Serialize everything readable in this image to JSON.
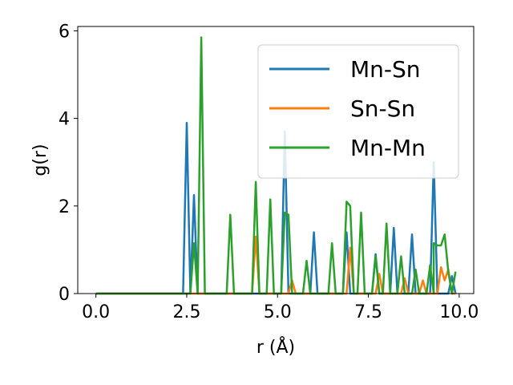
{
  "chart_data": {
    "type": "line",
    "title": "",
    "xlabel": "r (Å)",
    "ylabel": "g(r)",
    "xlim": [
      -0.5,
      10.4
    ],
    "ylim": [
      0,
      6.1
    ],
    "xticks": [
      0.0,
      2.5,
      5.0,
      7.5,
      10.0
    ],
    "xtick_labels": [
      "0.0",
      "2.5",
      "5.0",
      "7.5",
      "10.0"
    ],
    "yticks": [
      0,
      2,
      4,
      6
    ],
    "ytick_labels": [
      "0",
      "2",
      "4",
      "6"
    ],
    "grid": false,
    "legend_position": "top-right",
    "colors": {
      "Mn-Sn": "#1f77b4",
      "Sn-Sn": "#ff7f0e",
      "Mn-Mn": "#2ca02c"
    },
    "series": [
      {
        "name": "Mn-Sn",
        "points": [
          [
            0.0,
            0
          ],
          [
            2.4,
            0
          ],
          [
            2.5,
            3.9
          ],
          [
            2.6,
            0
          ],
          [
            2.7,
            2.25
          ],
          [
            2.8,
            0
          ],
          [
            5.1,
            0
          ],
          [
            5.2,
            3.7
          ],
          [
            5.3,
            0
          ],
          [
            5.9,
            0
          ],
          [
            6.0,
            1.4
          ],
          [
            6.1,
            0
          ],
          [
            6.8,
            0
          ],
          [
            6.9,
            1.4
          ],
          [
            7.0,
            0
          ],
          [
            7.6,
            0
          ],
          [
            7.7,
            0.9
          ],
          [
            7.8,
            0
          ],
          [
            8.1,
            0
          ],
          [
            8.2,
            1.5
          ],
          [
            8.3,
            0
          ],
          [
            8.6,
            0
          ],
          [
            8.7,
            1.35
          ],
          [
            8.8,
            0
          ],
          [
            9.2,
            0
          ],
          [
            9.3,
            3.0
          ],
          [
            9.4,
            0
          ],
          [
            9.7,
            0
          ],
          [
            9.8,
            0.4
          ],
          [
            9.9,
            0
          ]
        ]
      },
      {
        "name": "Sn-Sn",
        "points": [
          [
            0.0,
            0
          ],
          [
            4.3,
            0
          ],
          [
            4.4,
            1.3
          ],
          [
            4.5,
            0
          ],
          [
            5.3,
            0
          ],
          [
            5.4,
            0.3
          ],
          [
            5.5,
            0
          ],
          [
            6.9,
            0
          ],
          [
            7.0,
            1.05
          ],
          [
            7.1,
            0
          ],
          [
            7.7,
            0
          ],
          [
            7.8,
            0.45
          ],
          [
            7.9,
            0
          ],
          [
            8.4,
            0
          ],
          [
            8.5,
            0.35
          ],
          [
            8.6,
            0
          ],
          [
            8.9,
            0
          ],
          [
            9.0,
            0.3
          ],
          [
            9.1,
            0
          ],
          [
            9.4,
            0
          ],
          [
            9.5,
            0.6
          ],
          [
            9.6,
            0.3
          ],
          [
            9.7,
            0.55
          ],
          [
            9.8,
            0
          ],
          [
            9.9,
            0
          ]
        ]
      },
      {
        "name": "Mn-Mn",
        "points": [
          [
            0.0,
            0
          ],
          [
            2.6,
            0
          ],
          [
            2.7,
            1.15
          ],
          [
            2.8,
            0
          ],
          [
            2.9,
            5.85
          ],
          [
            3.0,
            0
          ],
          [
            3.6,
            0
          ],
          [
            3.7,
            1.8
          ],
          [
            3.8,
            0
          ],
          [
            4.3,
            0
          ],
          [
            4.4,
            2.55
          ],
          [
            4.5,
            0
          ],
          [
            4.7,
            0
          ],
          [
            4.8,
            2.15
          ],
          [
            4.9,
            0
          ],
          [
            5.1,
            0
          ],
          [
            5.2,
            1.85
          ],
          [
            5.3,
            1.8
          ],
          [
            5.4,
            0
          ],
          [
            5.7,
            0
          ],
          [
            5.8,
            0.75
          ],
          [
            5.9,
            0
          ],
          [
            6.4,
            0
          ],
          [
            6.5,
            1.15
          ],
          [
            6.6,
            0
          ],
          [
            6.8,
            0
          ],
          [
            6.9,
            2.1
          ],
          [
            7.0,
            2.0
          ],
          [
            7.1,
            0
          ],
          [
            7.2,
            0
          ],
          [
            7.3,
            1.85
          ],
          [
            7.4,
            0
          ],
          [
            7.6,
            0
          ],
          [
            7.7,
            0.85
          ],
          [
            7.8,
            0
          ],
          [
            7.9,
            0
          ],
          [
            8.0,
            1.6
          ],
          [
            8.1,
            0
          ],
          [
            8.3,
            0
          ],
          [
            8.4,
            0.85
          ],
          [
            8.5,
            0
          ],
          [
            8.7,
            0
          ],
          [
            8.8,
            0.55
          ],
          [
            8.9,
            0
          ],
          [
            9.1,
            0
          ],
          [
            9.2,
            0.65
          ],
          [
            9.3,
            0
          ],
          [
            9.3,
            1.15
          ],
          [
            9.4,
            1.1
          ],
          [
            9.5,
            1.1
          ],
          [
            9.6,
            1.35
          ],
          [
            9.7,
            0.5
          ],
          [
            9.8,
            0
          ],
          [
            9.9,
            0.5
          ]
        ]
      }
    ]
  }
}
